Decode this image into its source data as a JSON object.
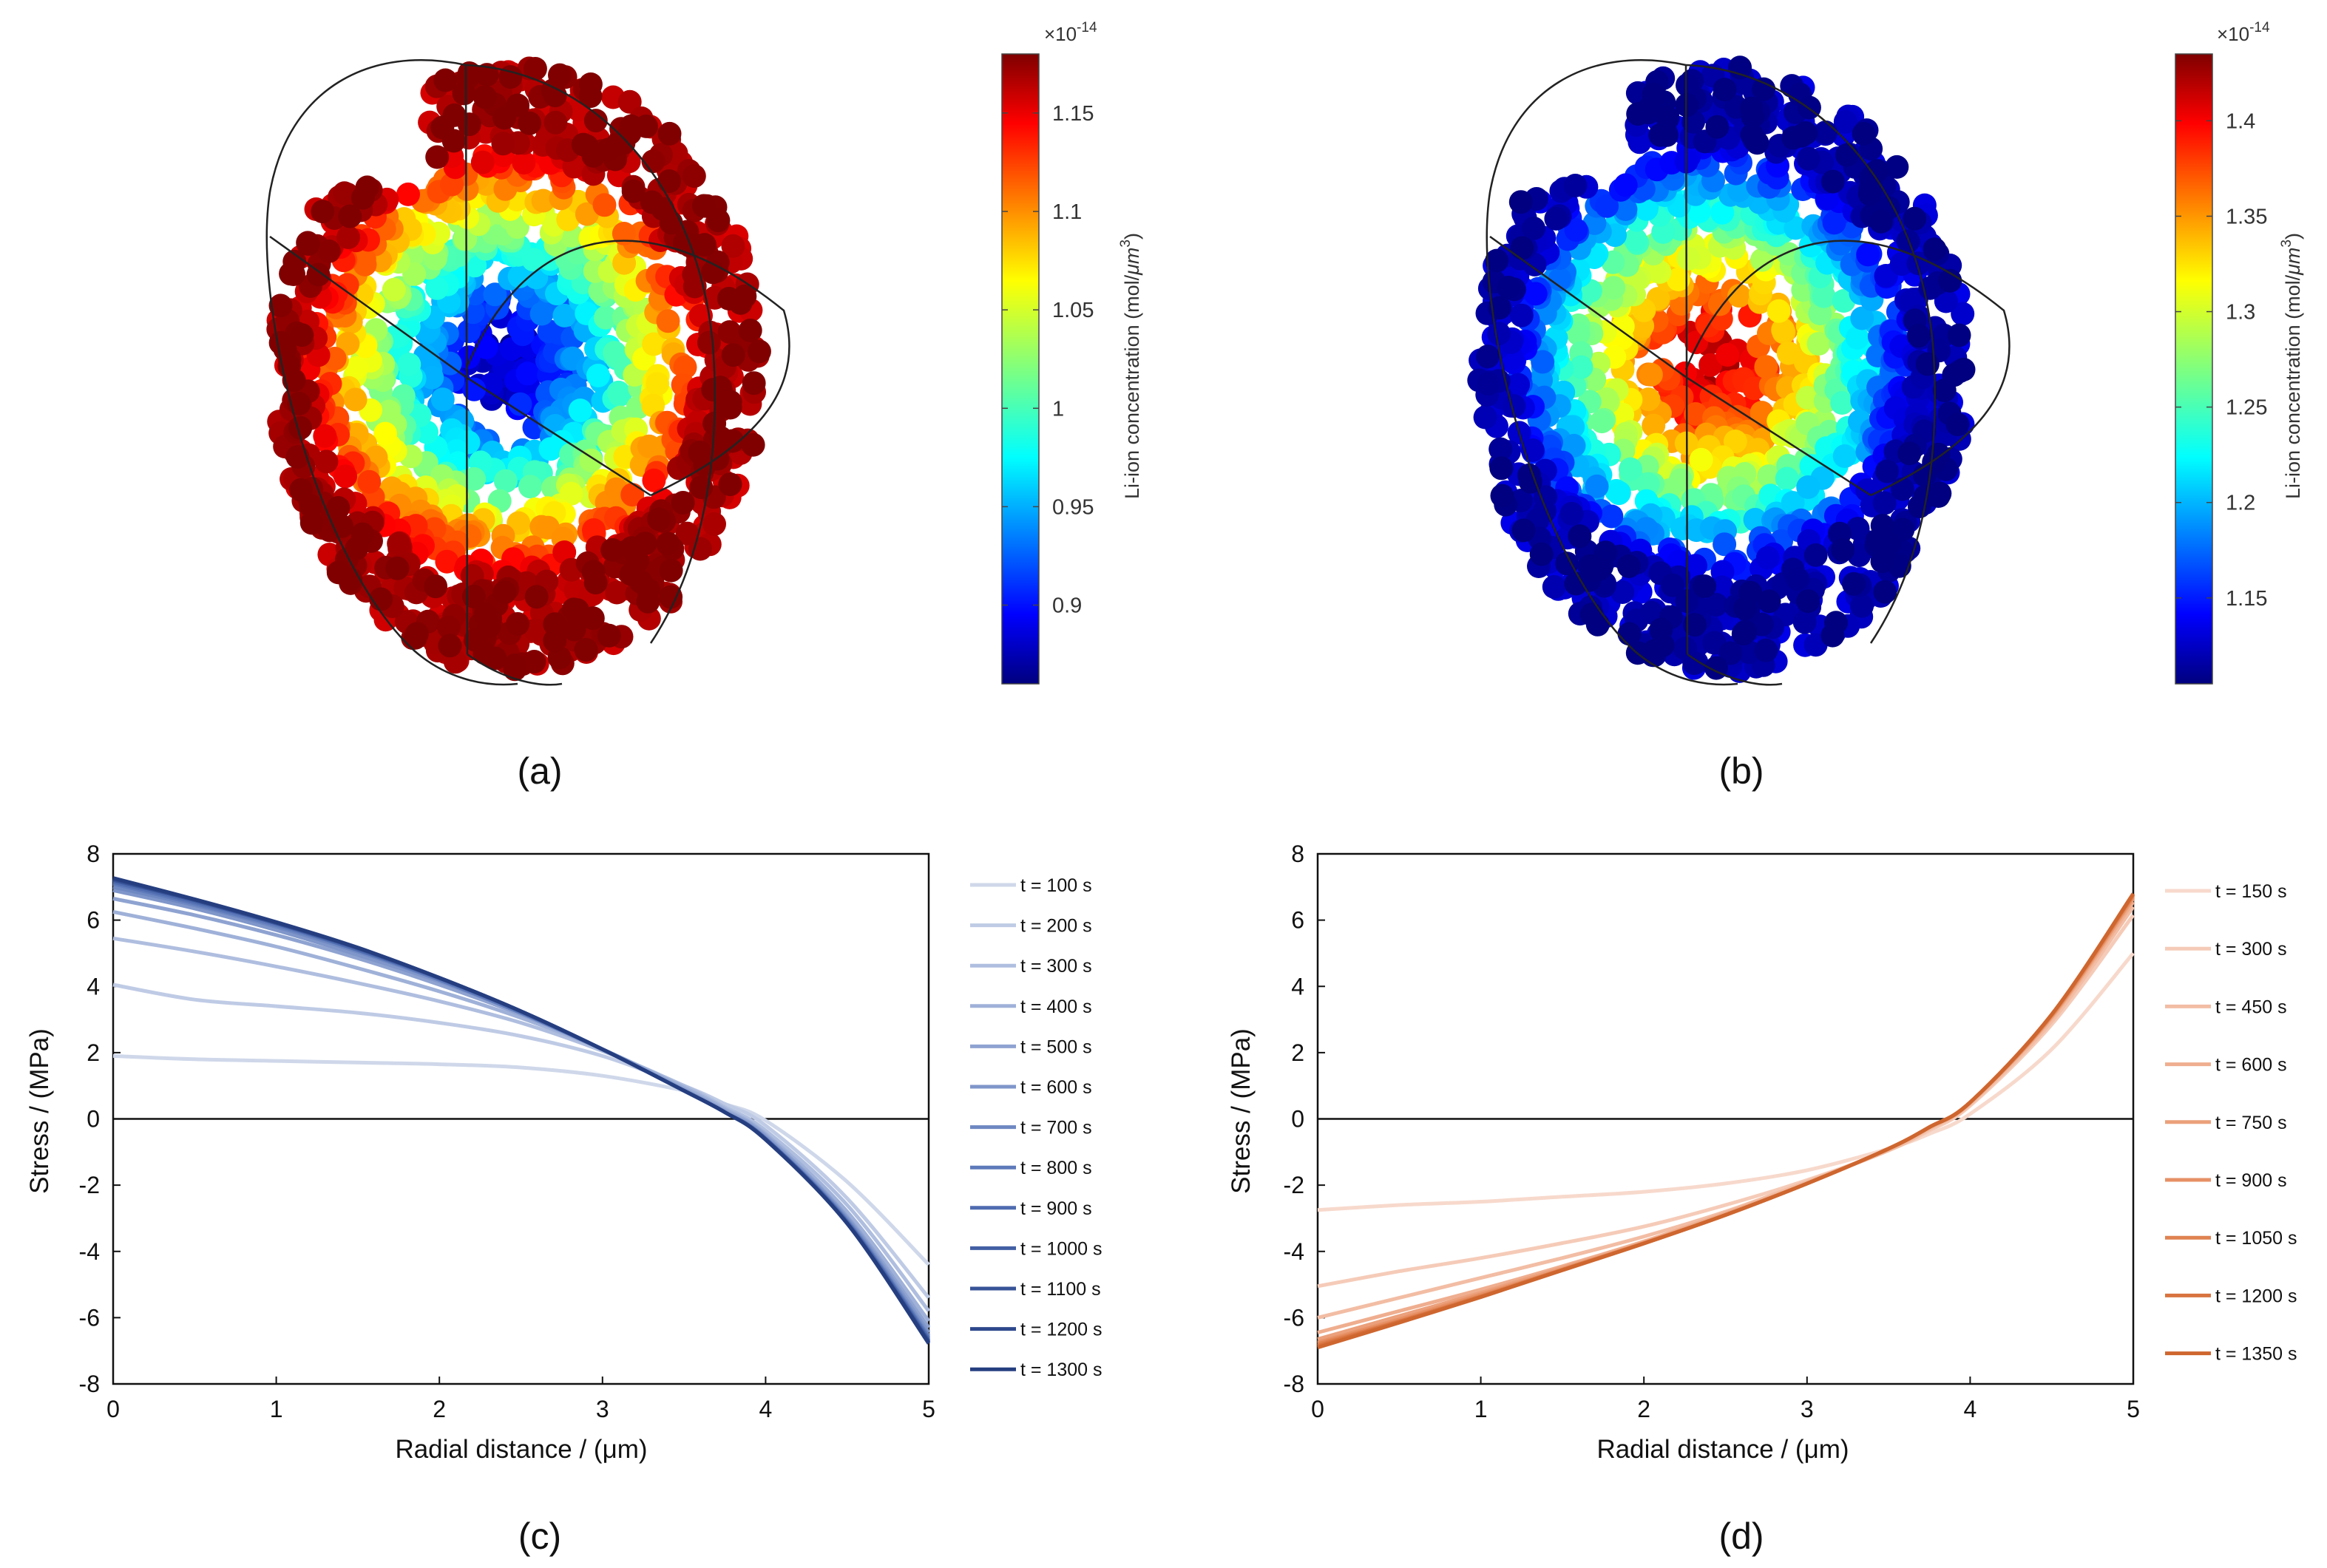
{
  "panel_labels": [
    "(a)",
    "(b)",
    "(c)",
    "(d)"
  ],
  "chart_data": [
    {
      "type": "scatter",
      "panel": "(a)",
      "description": "3D particle cloud of a sphere section colored by Li-ion concentration; low values in the core, high at the surface",
      "colorbar": {
        "label": "Li-ion concentration (mol/μm³)",
        "label_parts": [
          "Li-ion concentration (mol/",
          "μm",
          "3",
          ")"
        ],
        "exponent": "×10",
        "exponent_power": "-14",
        "range": [
          0.86,
          1.18
        ],
        "ticks": [
          "0.9",
          "0.95",
          "1",
          "1.05",
          "1.1",
          "1.15"
        ],
        "tick_values": [
          0.9,
          0.95,
          1.0,
          1.05,
          1.1,
          1.15
        ]
      },
      "core_value": 0.87,
      "surface_value": 1.17
    },
    {
      "type": "scatter",
      "panel": "(b)",
      "description": "3D particle cloud of a sphere section colored by Li-ion concentration; high values in the core, low at the surface",
      "colorbar": {
        "label": "Li-ion concentration (mol/μm³)",
        "label_parts": [
          "Li-ion concentration (mol/",
          "μm",
          "3",
          ")"
        ],
        "exponent": "×10",
        "exponent_power": "-14",
        "range": [
          1.105,
          1.435
        ],
        "ticks": [
          "1.15",
          "1.2",
          "1.25",
          "1.3",
          "1.35",
          "1.4"
        ],
        "tick_values": [
          1.15,
          1.2,
          1.25,
          1.3,
          1.35,
          1.4
        ]
      },
      "core_value": 1.42,
      "surface_value": 1.12
    },
    {
      "type": "line",
      "panel": "(c)",
      "xlabel": "Radial distance / (μm)",
      "ylabel": "Stress / (MPa)",
      "xlim": [
        0,
        5
      ],
      "ylim": [
        -8,
        8
      ],
      "xticks": [
        "0",
        "1",
        "2",
        "3",
        "4",
        "5"
      ],
      "yticks": [
        "8",
        "6",
        "4",
        "2",
        "0",
        "-2",
        "-4",
        "-6",
        "-8"
      ],
      "x": [
        0,
        0.5,
        1,
        1.5,
        2,
        2.5,
        3,
        3.5,
        3.75,
        4,
        4.5,
        5
      ],
      "series": [
        {
          "name": "t = 100 s",
          "values": [
            1.9,
            1.8,
            1.75,
            1.7,
            1.65,
            1.55,
            1.3,
            0.85,
            0.45,
            -0.05,
            -1.9,
            -4.4
          ]
        },
        {
          "name": "t = 200 s",
          "values": [
            4.05,
            3.6,
            3.4,
            3.2,
            2.9,
            2.5,
            1.9,
            1.0,
            0.45,
            -0.2,
            -2.4,
            -5.4
          ]
        },
        {
          "name": "t = 300 s",
          "values": [
            5.45,
            5.05,
            4.6,
            4.1,
            3.55,
            2.9,
            2.05,
            1.0,
            0.35,
            -0.35,
            -2.6,
            -5.8
          ]
        },
        {
          "name": "t = 400 s",
          "values": [
            6.25,
            5.75,
            5.2,
            4.55,
            3.85,
            3.05,
            2.1,
            0.95,
            0.3,
            -0.45,
            -2.8,
            -6.1
          ]
        },
        {
          "name": "t = 500 s",
          "values": [
            6.65,
            6.15,
            5.55,
            4.85,
            4.05,
            3.15,
            2.1,
            0.9,
            0.25,
            -0.5,
            -2.95,
            -6.3
          ]
        },
        {
          "name": "t = 600 s",
          "values": [
            6.9,
            6.35,
            5.7,
            4.95,
            4.15,
            3.2,
            2.1,
            0.85,
            0.2,
            -0.55,
            -3.0,
            -6.45
          ]
        },
        {
          "name": "t = 700 s",
          "values": [
            7.0,
            6.45,
            5.8,
            5.05,
            4.2,
            3.2,
            2.1,
            0.85,
            0.2,
            -0.6,
            -3.05,
            -6.55
          ]
        },
        {
          "name": "t = 800 s",
          "values": [
            7.1,
            6.5,
            5.85,
            5.1,
            4.2,
            3.2,
            2.1,
            0.85,
            0.2,
            -0.6,
            -3.1,
            -6.6
          ]
        },
        {
          "name": "t = 900 s",
          "values": [
            7.15,
            6.55,
            5.9,
            5.1,
            4.25,
            3.25,
            2.1,
            0.85,
            0.2,
            -0.6,
            -3.1,
            -6.65
          ]
        },
        {
          "name": "t = 1000 s",
          "values": [
            7.2,
            6.6,
            5.9,
            5.15,
            4.25,
            3.25,
            2.1,
            0.85,
            0.2,
            -0.6,
            -3.15,
            -6.7
          ]
        },
        {
          "name": "t = 1100 s",
          "values": [
            7.22,
            6.6,
            5.92,
            5.15,
            4.25,
            3.25,
            2.1,
            0.85,
            0.2,
            -0.62,
            -3.15,
            -6.72
          ]
        },
        {
          "name": "t = 1200 s",
          "values": [
            7.25,
            6.62,
            5.93,
            5.16,
            4.26,
            3.25,
            2.1,
            0.85,
            0.2,
            -0.62,
            -3.15,
            -6.75
          ]
        },
        {
          "name": "t = 1300 s",
          "values": [
            7.27,
            6.63,
            5.94,
            5.17,
            4.26,
            3.25,
            2.1,
            0.85,
            0.2,
            -0.63,
            -3.16,
            -6.78
          ]
        }
      ],
      "colors": [
        "#cfd8ea",
        "#bfcbe5",
        "#afbedf",
        "#9fb1d8",
        "#8fa3d1",
        "#7f96ca",
        "#6e88c2",
        "#5e7aba",
        "#4f6cb0",
        "#435fa4",
        "#385398",
        "#2e488c",
        "#253e80"
      ]
    },
    {
      "type": "line",
      "panel": "(d)",
      "xlabel": "Radial distance / (μm)",
      "ylabel": "Stress / (MPa)",
      "xlim": [
        0,
        5
      ],
      "ylim": [
        -8,
        8
      ],
      "xticks": [
        "0",
        "1",
        "2",
        "3",
        "4",
        "5"
      ],
      "yticks": [
        "8",
        "6",
        "4",
        "2",
        "0",
        "-2",
        "-4",
        "-6",
        "-8"
      ],
      "x": [
        0,
        0.5,
        1,
        1.5,
        2,
        2.5,
        3,
        3.5,
        3.75,
        4,
        4.5,
        5
      ],
      "series": [
        {
          "name": "t = 150 s",
          "values": [
            -2.75,
            -2.6,
            -2.5,
            -2.35,
            -2.2,
            -1.95,
            -1.55,
            -0.9,
            -0.45,
            0.15,
            2.1,
            5.0
          ]
        },
        {
          "name": "t = 300 s",
          "values": [
            -5.05,
            -4.6,
            -4.2,
            -3.75,
            -3.25,
            -2.6,
            -1.85,
            -0.95,
            -0.35,
            0.4,
            2.85,
            6.15
          ]
        },
        {
          "name": "t = 450 s",
          "values": [
            -6.0,
            -5.4,
            -4.8,
            -4.2,
            -3.55,
            -2.8,
            -1.9,
            -0.95,
            -0.3,
            0.45,
            2.95,
            6.4
          ]
        },
        {
          "name": "t = 600 s",
          "values": [
            -6.45,
            -5.8,
            -5.15,
            -4.45,
            -3.7,
            -2.85,
            -1.95,
            -0.9,
            -0.25,
            0.5,
            3.05,
            6.55
          ]
        },
        {
          "name": "t = 750 s",
          "values": [
            -6.65,
            -5.95,
            -5.25,
            -4.5,
            -3.75,
            -2.9,
            -1.95,
            -0.9,
            -0.25,
            0.5,
            3.1,
            6.65
          ]
        },
        {
          "name": "t = 900 s",
          "values": [
            -6.75,
            -6.05,
            -5.3,
            -4.55,
            -3.75,
            -2.9,
            -1.95,
            -0.9,
            -0.25,
            0.5,
            3.1,
            6.7
          ]
        },
        {
          "name": "t = 1050 s",
          "values": [
            -6.8,
            -6.1,
            -5.35,
            -4.55,
            -3.75,
            -2.9,
            -1.95,
            -0.9,
            -0.25,
            0.5,
            3.15,
            6.75
          ]
        },
        {
          "name": "t = 1200 s",
          "values": [
            -6.85,
            -6.12,
            -5.37,
            -4.56,
            -3.76,
            -2.9,
            -1.95,
            -0.9,
            -0.25,
            0.5,
            3.15,
            6.78
          ]
        },
        {
          "name": "t = 1350 s",
          "values": [
            -6.9,
            -6.15,
            -5.38,
            -4.57,
            -3.76,
            -2.9,
            -1.95,
            -0.9,
            -0.25,
            0.5,
            3.15,
            6.8
          ]
        }
      ],
      "colors": [
        "#f7d9cc",
        "#f5cbb8",
        "#f2bda4",
        "#efae8f",
        "#eba07b",
        "#e79166",
        "#e08252",
        "#d8733f",
        "#ce662f"
      ]
    }
  ]
}
